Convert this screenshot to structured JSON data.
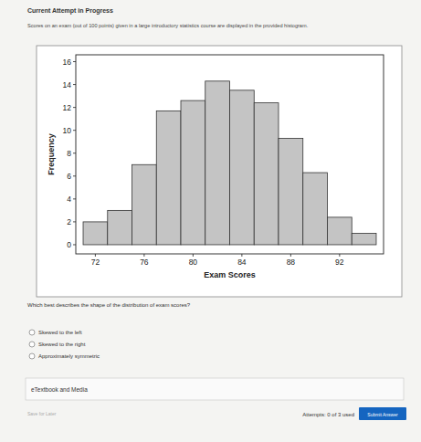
{
  "page": {
    "header": "Current Attempt in Progress",
    "prompt": "Scores on an exam (out of 100 points) given in a large introductory statistics course are displayed in the provided histogram.",
    "question": "Which best describes the shape of the distribution of exam scores?",
    "options": [
      "Skewed to the left",
      "Skewed to the right",
      "Approximately symmetric"
    ],
    "media": "eTextbook and Media",
    "save": "Save for Later",
    "attempts": "Attempts: 0 of 3 used",
    "submit": "Submit Answer"
  },
  "chart_data": {
    "type": "histogram",
    "x_label": "Exam Scores",
    "y_label": "Frequency",
    "bins": [
      71,
      73,
      75,
      77,
      79,
      81,
      83,
      85,
      87,
      89,
      91,
      93,
      95
    ],
    "values": [
      2,
      3,
      7,
      11.7,
      12.6,
      14.3,
      13.5,
      12.4,
      9.3,
      6.3,
      2.4,
      1
    ],
    "color": "#c4c4c4",
    "xlim": [
      70.4,
      95.6
    ],
    "xticks": [
      72,
      76,
      80,
      84,
      88,
      92
    ],
    "ylim": [
      -0.8,
      16.6
    ],
    "yticks": [
      0,
      2,
      4,
      6,
      8,
      10,
      12,
      14,
      16
    ],
    "grid": false
  }
}
